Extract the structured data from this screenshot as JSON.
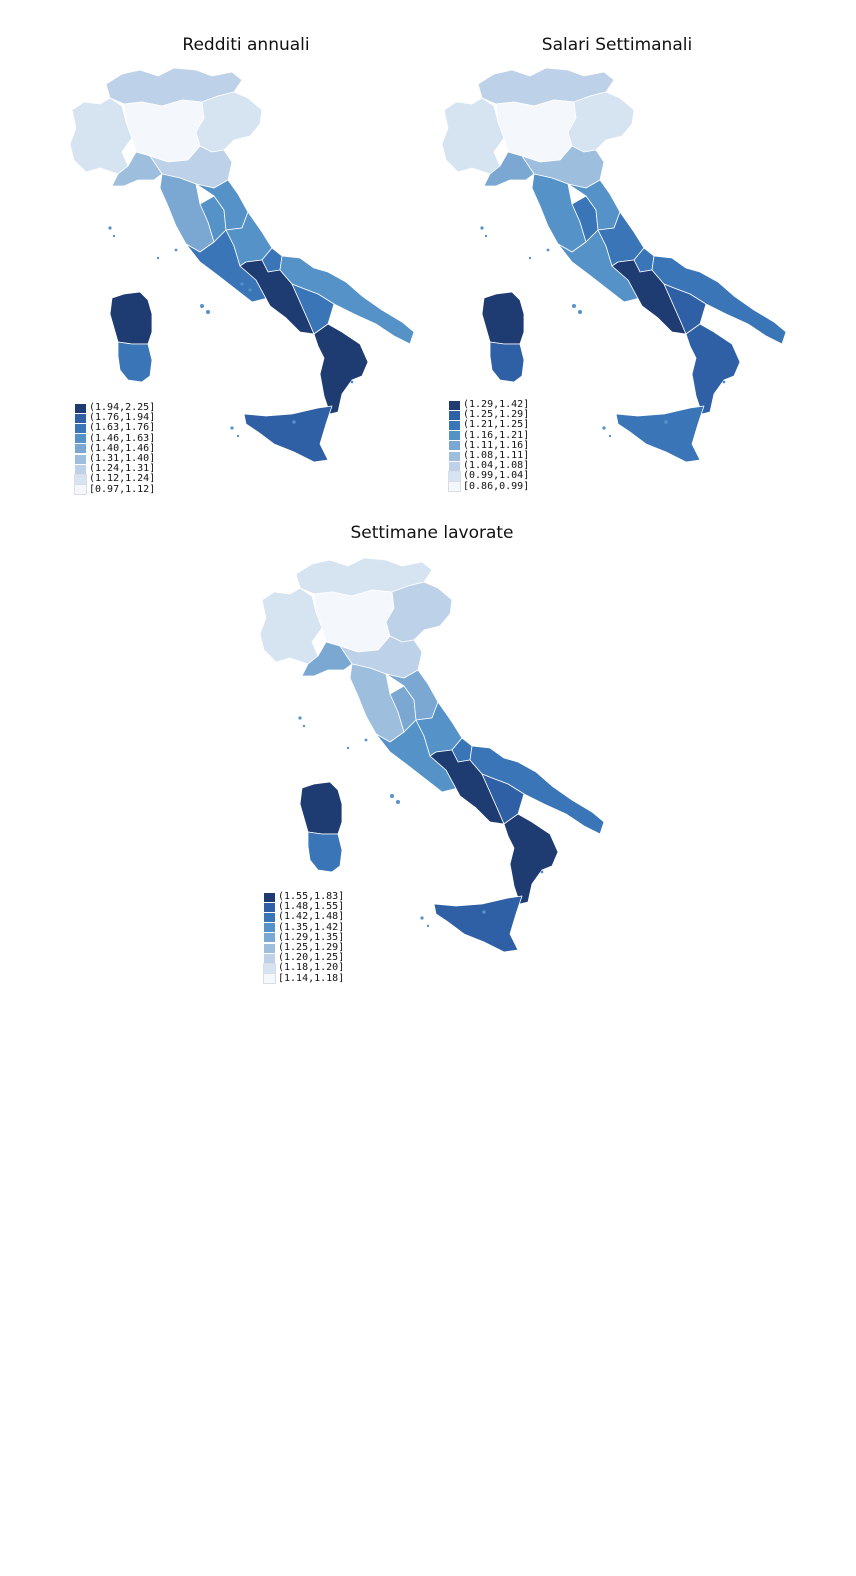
{
  "palette": [
    "#f4f8fc",
    "#d6e3f1",
    "#bdd1e8",
    "#9dbedd",
    "#7aa8d2",
    "#5592c8",
    "#3a75b8",
    "#2f5fa4",
    "#1e3b72"
  ],
  "maps": [
    {
      "id": "redditi",
      "title": "Redditi annuali",
      "legend": [
        {
          "label": "(1.94,2.25]",
          "shade": 8
        },
        {
          "label": "(1.76,1.94]",
          "shade": 7
        },
        {
          "label": "(1.63,1.76]",
          "shade": 6
        },
        {
          "label": "(1.46,1.63]",
          "shade": 5
        },
        {
          "label": "(1.40,1.46]",
          "shade": 4
        },
        {
          "label": "(1.31,1.40]",
          "shade": 3
        },
        {
          "label": "(1.24,1.31]",
          "shade": 2
        },
        {
          "label": "(1.12,1.24]",
          "shade": 1
        },
        {
          "label": "[0.97,1.12]",
          "shade": 0
        }
      ],
      "regions": {
        "northwest": 1,
        "alps": 2,
        "lombardy": 0,
        "veneto": 1,
        "emilia": 2,
        "liguria": 3,
        "tuscany": 4,
        "marche": 5,
        "umbria": 5,
        "lazio": 6,
        "abruzzo": 5,
        "molise": 6,
        "campania": 8,
        "puglia": 5,
        "basilicata": 6,
        "calabria": 8,
        "sicily": 7,
        "sardinia_n": 8,
        "sardinia_s": 6
      }
    },
    {
      "id": "salari",
      "title": "Salari Settimanali",
      "legend": [
        {
          "label": "(1.29,1.42]",
          "shade": 8
        },
        {
          "label": "(1.25,1.29]",
          "shade": 7
        },
        {
          "label": "(1.21,1.25]",
          "shade": 6
        },
        {
          "label": "(1.16,1.21]",
          "shade": 5
        },
        {
          "label": "(1.11,1.16]",
          "shade": 4
        },
        {
          "label": "(1.08,1.11]",
          "shade": 3
        },
        {
          "label": "(1.04,1.08]",
          "shade": 2
        },
        {
          "label": "(0.99,1.04]",
          "shade": 1
        },
        {
          "label": "[0.86,0.99]",
          "shade": 0
        }
      ],
      "regions": {
        "northwest": 1,
        "alps": 2,
        "lombardy": 0,
        "veneto": 1,
        "emilia": 3,
        "liguria": 4,
        "tuscany": 5,
        "marche": 5,
        "umbria": 6,
        "lazio": 5,
        "abruzzo": 6,
        "molise": 6,
        "campania": 8,
        "puglia": 6,
        "basilicata": 7,
        "calabria": 7,
        "sicily": 6,
        "sardinia_n": 8,
        "sardinia_s": 7
      }
    },
    {
      "id": "settimane",
      "title": "Settimane lavorate",
      "legend": [
        {
          "label": "(1.55,1.83]",
          "shade": 8
        },
        {
          "label": "(1.48,1.55]",
          "shade": 7
        },
        {
          "label": "(1.42,1.48]",
          "shade": 6
        },
        {
          "label": "(1.35,1.42]",
          "shade": 5
        },
        {
          "label": "(1.29,1.35]",
          "shade": 4
        },
        {
          "label": "(1.25,1.29]",
          "shade": 3
        },
        {
          "label": "(1.20,1.25]",
          "shade": 2
        },
        {
          "label": "(1.18,1.20]",
          "shade": 1
        },
        {
          "label": "[1.14,1.18]",
          "shade": 0
        }
      ],
      "regions": {
        "northwest": 1,
        "alps": 1,
        "lombardy": 0,
        "veneto": 2,
        "emilia": 2,
        "liguria": 4,
        "tuscany": 3,
        "marche": 4,
        "umbria": 4,
        "lazio": 5,
        "abruzzo": 5,
        "molise": 6,
        "campania": 8,
        "puglia": 6,
        "basilicata": 7,
        "calabria": 8,
        "sicily": 7,
        "sardinia_n": 8,
        "sardinia_s": 6
      }
    }
  ]
}
